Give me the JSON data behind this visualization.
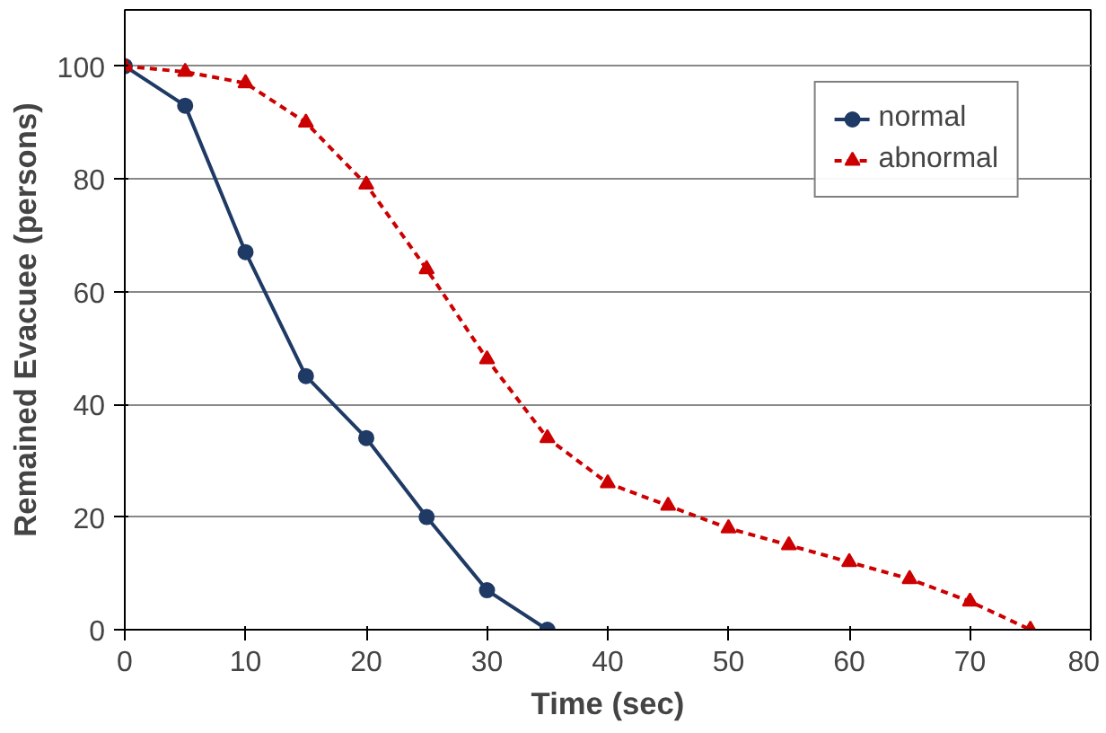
{
  "chart_data": {
    "type": "line",
    "xlabel": "Time (sec)",
    "ylabel": "Remained Evacuee (persons)",
    "xlim": [
      0,
      80
    ],
    "xticks": [
      0,
      10,
      20,
      30,
      40,
      50,
      60,
      70,
      80
    ],
    "ylim": [
      0,
      110
    ],
    "yticks": [
      0,
      20,
      40,
      60,
      80,
      100
    ],
    "grid": "y",
    "legend": "top right",
    "series": [
      {
        "name": "normal",
        "color": "#1f3a64",
        "marker": "circle",
        "line_style": "solid",
        "x": [
          0,
          5,
          10,
          15,
          20,
          25,
          30,
          35
        ],
        "values": [
          100,
          93,
          67,
          45,
          34,
          20,
          7,
          0
        ]
      },
      {
        "name": "abnormal",
        "color": "#cc0000",
        "marker": "triangle",
        "line_style": "dashed",
        "x": [
          0,
          5,
          10,
          15,
          20,
          25,
          30,
          35,
          40,
          45,
          50,
          55,
          60,
          65,
          70,
          75
        ],
        "values": [
          100,
          99,
          97,
          90,
          79,
          64,
          48,
          34,
          26,
          22,
          18,
          15,
          12,
          9,
          5,
          0
        ]
      }
    ]
  }
}
